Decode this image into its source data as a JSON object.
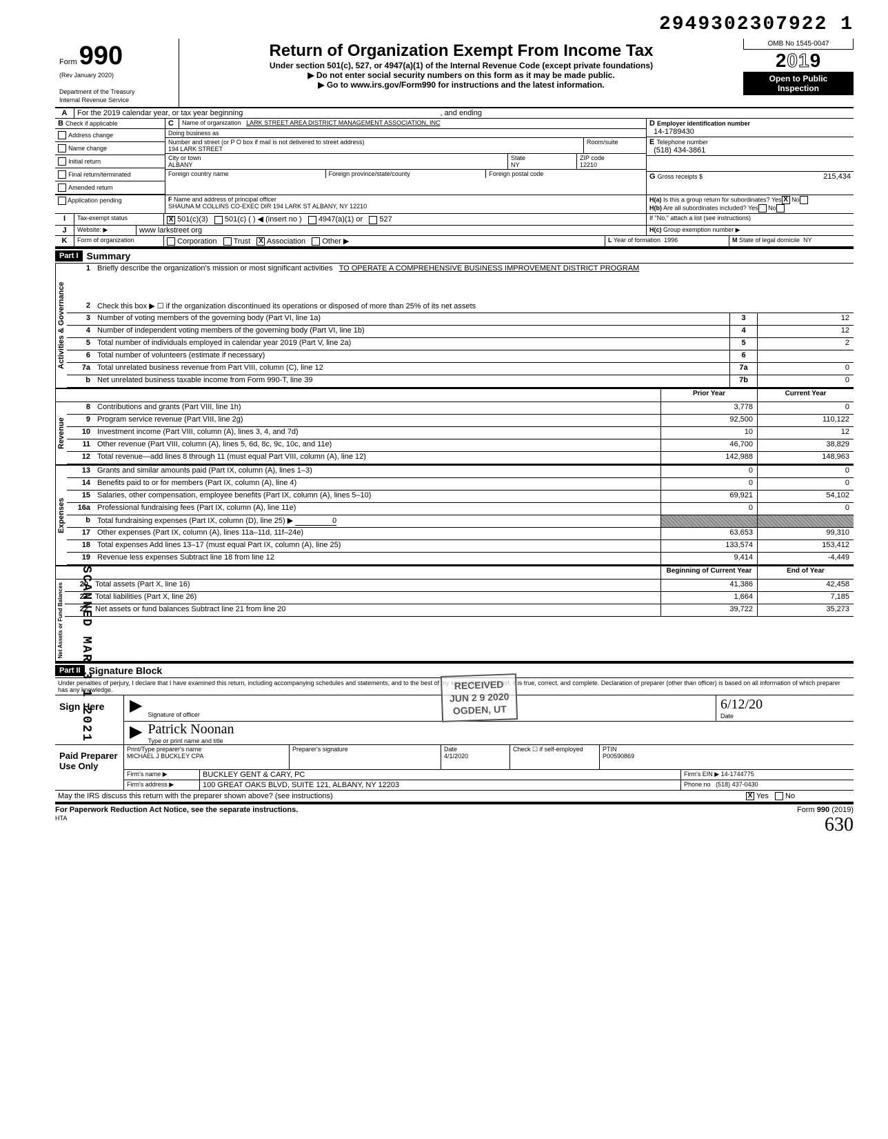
{
  "doc_id": "2949302307922 1",
  "header": {
    "form_label": "Form",
    "form_number": "990",
    "rev": "(Rev  January 2020)",
    "dept": "Department of the Treasury",
    "irs": "Internal Revenue Service",
    "title": "Return of Organization Exempt From Income Tax",
    "subtitle": "Under section 501(c), 527, or 4947(a)(1) of the Internal Revenue Code (except private foundations)",
    "warn": "▶   Do not enter social security numbers on this form as it may be made public.",
    "goto": "▶  Go to www.irs.gov/Form990 for instructions and the latest information.",
    "omb": "OMB No  1545-0047",
    "year_prefix": "2",
    "year_outline": "01",
    "year_suffix": "9",
    "open": "Open to Public",
    "inspection": "Inspection"
  },
  "rowA": {
    "label": "A",
    "text_left": "For the 2019 calendar year, or tax year beginning",
    "text_mid": ", and ending"
  },
  "rowB": {
    "label": "B",
    "check_label": "Check if applicable",
    "items": [
      "Address change",
      "Name change",
      "Initial return",
      "Final return/terminated",
      "Amended return",
      "Application pending"
    ]
  },
  "boxC": {
    "label": "C",
    "name_label": "Name of organization",
    "name": "LARK STREET AREA DISTRICT MANAGEMENT ASSOCIATION, INC",
    "dba_label": "Doing business as",
    "addr_label": "Number and street (or P O  box if mail is not delivered to street address)",
    "room_label": "Room/suite",
    "addr": "194 LARK STREET",
    "city_label": "City or town",
    "state_label": "State",
    "zip_label": "ZIP code",
    "city": "ALBANY",
    "state": "NY",
    "zip": "12210",
    "fc_label": "Foreign country name",
    "fp_label": "Foreign province/state/county",
    "fpc_label": "Foreign postal code"
  },
  "boxD": {
    "label": "D",
    "title": "Employer identification number",
    "value": "14-1789430"
  },
  "boxE": {
    "label": "E",
    "title": "Telephone number",
    "value": "(518) 434-3861"
  },
  "boxG": {
    "label": "G",
    "title": "Gross receipts $",
    "value": "215,434"
  },
  "boxF": {
    "label": "F",
    "title": "Name and address of principal officer",
    "value": "SHAUNA M  COLLINS CO-EXEC  DIR  194 LARK ST ALBANY, NY 12210"
  },
  "boxH": {
    "a_label": "H(a)",
    "a_text": "Is this a group return for subordinates?",
    "a_yes": "Yes",
    "a_no": "No",
    "a_checked": "X",
    "b_label": "H(b)",
    "b_text": "Are all subordinates included?",
    "b_yes": "Yes",
    "b_no": "No",
    "b_note": "If \"No,\" attach a list (see instructions)",
    "c_label": "H(c)",
    "c_text": "Group exemption number ▶"
  },
  "rowI": {
    "label": "I",
    "title": "Tax-exempt status",
    "opt1": "501(c)(3)",
    "opt1_x": "X",
    "opt2": "501(c)",
    "opt2_paren": "(          )  ◀ (insert no )",
    "opt3": "4947(a)(1) or",
    "opt4": "527"
  },
  "rowJ": {
    "label": "J",
    "title": "Website:  ▶",
    "value": "www larkstreet org"
  },
  "rowK": {
    "label": "K",
    "title": "Form of organization",
    "opts": [
      "Corporation",
      "Trust",
      "Association",
      "Other ▶"
    ],
    "checked_idx": 2,
    "L_label": "L",
    "L_text": "Year of formation",
    "L_val": "1996",
    "M_label": "M",
    "M_text": "State of legal domicile",
    "M_val": "NY"
  },
  "part1": {
    "header": "Part I",
    "title": "Summary"
  },
  "sec_gov": {
    "label": "Activities & Governance",
    "r1_num": "1",
    "r1_text": "Briefly describe the organization's mission or most significant activities",
    "r1_val": "TO OPERATE A COMPREHENSIVE BUSINESS IMPROVEMENT DISTRICT PROGRAM",
    "r2_num": "2",
    "r2_text": "Check this box  ▶  ☐   if the organization discontinued its operations or disposed of more than 25% of its net assets",
    "rows": [
      {
        "num": "3",
        "text": "Number of voting members of the governing body (Part VI, line 1a)",
        "box": "3",
        "val": "12"
      },
      {
        "num": "4",
        "text": "Number of independent voting members of the governing body (Part VI, line 1b)",
        "box": "4",
        "val": "12"
      },
      {
        "num": "5",
        "text": "Total number of individuals employed in calendar year 2019 (Part V, line 2a)",
        "box": "5",
        "val": "2"
      },
      {
        "num": "6",
        "text": "Total number of volunteers (estimate if necessary)",
        "box": "6",
        "val": ""
      },
      {
        "num": "7a",
        "text": "Total unrelated business revenue from Part VIII, column (C), line 12",
        "box": "7a",
        "val": "0"
      },
      {
        "num": "b",
        "text": "Net unrelated business taxable income from Form 990-T, line 39",
        "box": "7b",
        "val": "0"
      }
    ]
  },
  "two_col_hdr": {
    "prior": "Prior Year",
    "current": "Current Year"
  },
  "sec_rev": {
    "label": "Revenue",
    "rows": [
      {
        "num": "8",
        "text": "Contributions and grants (Part VIII, line 1h)",
        "prior": "3,778",
        "curr": "0"
      },
      {
        "num": "9",
        "text": "Program service revenue (Part VIII, line 2g)",
        "prior": "92,500",
        "curr": "110,122"
      },
      {
        "num": "10",
        "text": "Investment income (Part VIII, column (A), lines 3, 4, and 7d)",
        "prior": "10",
        "curr": "12"
      },
      {
        "num": "11",
        "text": "Other revenue (Part VIII, column (A), lines 5, 6d, 8c, 9c, 10c, and 11e)",
        "prior": "46,700",
        "curr": "38,829"
      },
      {
        "num": "12",
        "text": "Total revenue—add lines 8 through 11 (must equal Part VIII, column (A), line 12)",
        "prior": "142,988",
        "curr": "148,963"
      }
    ]
  },
  "sec_exp": {
    "label": "Expenses",
    "rows": [
      {
        "num": "13",
        "text": "Grants and similar amounts paid (Part IX, column (A), lines 1–3)",
        "prior": "0",
        "curr": "0"
      },
      {
        "num": "14",
        "text": "Benefits paid to or for members (Part IX, column (A), line 4)",
        "prior": "0",
        "curr": "0"
      },
      {
        "num": "15",
        "text": "Salaries, other compensation, employee benefits (Part IX, column (A), lines 5–10)",
        "prior": "69,921",
        "curr": "54,102"
      },
      {
        "num": "16a",
        "text": "Professional fundraising fees (Part IX, column (A), line 11e)",
        "prior": "0",
        "curr": "0"
      },
      {
        "num": "b",
        "text": "Total fundraising expenses (Part IX, column (D), line 25)  ▶",
        "prior": "0",
        "curr": "",
        "shaded": true,
        "inline_val": "0"
      },
      {
        "num": "17",
        "text": "Other expenses (Part IX, column (A), lines 11a–11d, 11f–24e)",
        "prior": "63,653",
        "curr": "99,310"
      },
      {
        "num": "18",
        "text": "Total expenses  Add lines 13–17 (must equal Part IX, column (A), line 25)",
        "prior": "133,574",
        "curr": "153,412"
      },
      {
        "num": "19",
        "text": "Revenue less expenses  Subtract line 18 from line 12",
        "prior": "9,414",
        "curr": "-4,449"
      }
    ]
  },
  "two_col_hdr2": {
    "prior": "Beginning of Current Year",
    "current": "End of Year"
  },
  "sec_net": {
    "label": "Net Assets or Fund Balances",
    "rows": [
      {
        "num": "20",
        "text": "Total assets (Part X, line 16)",
        "prior": "41,386",
        "curr": "42,458"
      },
      {
        "num": "21",
        "text": "Total liabilities (Part X, line 26)",
        "prior": "1,664",
        "curr": "7,185"
      },
      {
        "num": "22",
        "text": "Net assets or fund balances  Subtract line 21 from line 20",
        "prior": "39,722",
        "curr": "35,273"
      }
    ]
  },
  "part2": {
    "header": "Part II",
    "title": "Signature Block"
  },
  "perjury": "Under penalties of perjury, I declare that I have examined this return, including accompanying schedules and statements, and to the best of my knowledge and belief, it is true, correct, and complete. Declaration of preparer (other than officer) is based on all information of which preparer has any knowledge.",
  "sign": {
    "here": "Sign Here",
    "sig_label": "Signature of officer",
    "date_label": "Date",
    "date_val": "6/12/20",
    "type_label": "Type or print name and title",
    "hand_name": "Patrick Noonan"
  },
  "paid": {
    "title": "Paid Preparer Use Only",
    "name_label": "Print/Type preparer's name",
    "name": "MICHAEL J BUCKLEY CPA",
    "sig_label": "Preparer's signature",
    "date_label": "Date",
    "date": "4/1/2020",
    "check_label": "Check ☐ if self-employed",
    "ptin_label": "PTIN",
    "ptin": "P00590869",
    "firm_label": "Firm's name   ▶",
    "firm": "BUCKLEY GENT & CARY, PC",
    "ein_label": "Firm's EIN  ▶",
    "ein": "14-1744775",
    "addr_label": "Firm's address  ▶",
    "addr": "100 GREAT OAKS BLVD, SUITE 121, ALBANY, NY 12203",
    "phone_label": "Phone no",
    "phone": "(518) 437-0430"
  },
  "irs_discuss": {
    "text": "May the IRS discuss this return with the preparer shown above? (see instructions)",
    "yes": "Yes",
    "no": "No",
    "checked": "X"
  },
  "footer": {
    "left": "For Paperwork Reduction Act Notice, see the separate instructions.",
    "hta": "HTA",
    "right": "Form 990 (2019)",
    "hand": "630"
  },
  "stamps": {
    "scanned": "SCANNED MAR 3 1 2021",
    "received": "RECEIVED\nJUN 2 9 2020\nOGDEN, UT"
  },
  "colors": {
    "text": "#000000",
    "bg": "#ffffff"
  }
}
